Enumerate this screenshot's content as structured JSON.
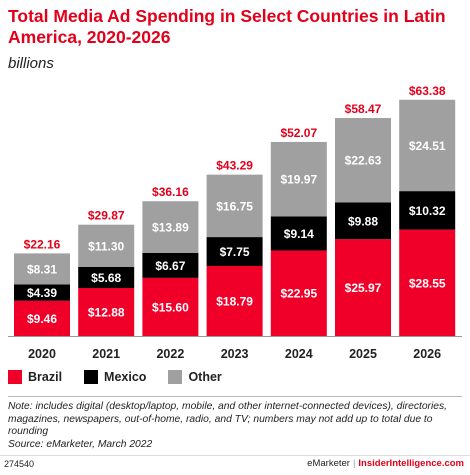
{
  "chart_data": {
    "type": "bar",
    "stacked": true,
    "title": "Total Media Ad Spending in Select Countries in Latin America, 2020-2026",
    "subtitle": "billions",
    "categories": [
      "2020",
      "2021",
      "2022",
      "2023",
      "2024",
      "2025",
      "2026"
    ],
    "series": [
      {
        "name": "Brazil",
        "color": "#f00028",
        "values": [
          9.46,
          12.88,
          15.6,
          18.79,
          22.95,
          25.97,
          28.55
        ],
        "labels": [
          "$9.46",
          "$12.88",
          "$15.60",
          "$18.79",
          "$22.95",
          "$25.97",
          "$28.55"
        ]
      },
      {
        "name": "Mexico",
        "color": "#000000",
        "values": [
          4.39,
          5.68,
          6.67,
          7.75,
          9.14,
          9.88,
          10.32
        ],
        "labels": [
          "$4.39",
          "$5.68",
          "$6.67",
          "$7.75",
          "$9.14",
          "$9.88",
          "$10.32"
        ]
      },
      {
        "name": "Other",
        "color": "#a0a0a0",
        "values": [
          8.31,
          11.3,
          13.89,
          16.75,
          19.97,
          22.63,
          24.51
        ],
        "labels": [
          "$8.31",
          "$11.30",
          "$13.89",
          "$16.75",
          "$19.97",
          "$22.63",
          "$24.51"
        ]
      }
    ],
    "totals": [
      22.16,
      29.87,
      36.16,
      43.29,
      52.07,
      58.47,
      63.38
    ],
    "total_labels": [
      "$22.16",
      "$29.87",
      "$36.16",
      "$43.29",
      "$52.07",
      "$58.47",
      "$63.38"
    ],
    "ylim": [
      0,
      66
    ],
    "grid": false,
    "legend": "bottom-left"
  },
  "note": "Note: includes digital (desktop/laptop, mobile, and other internet-connected devices), directories, magazines, newspapers, out-of-home, radio, and TV; numbers may not add up to total due to rounding",
  "source": "Source: eMarketer, March 2022",
  "footer": {
    "chart_id": "274540",
    "brand": "eMarketer",
    "separator": "|",
    "site": "InsiderIntelligence.com"
  },
  "colors": {
    "brazil": "#f00028",
    "mexico": "#000000",
    "other": "#a0a0a0",
    "title": "#e3001b"
  }
}
